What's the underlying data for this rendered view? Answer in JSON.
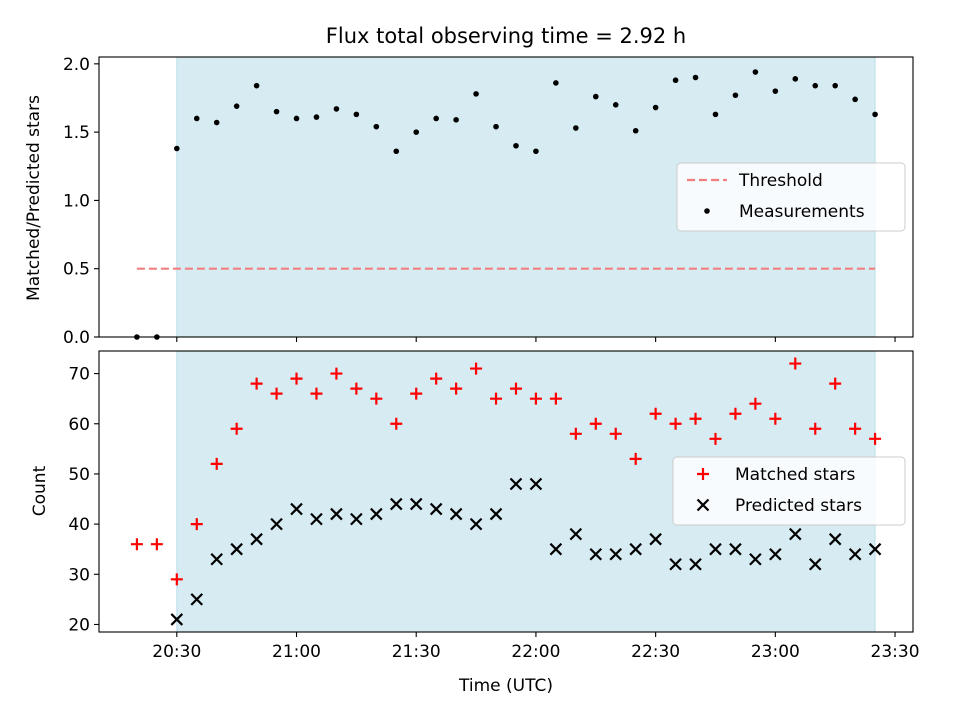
{
  "chart_data": {
    "title": "Flux total observing time = 2.92 h",
    "xlabel": "Time (UTC)",
    "x_ticks": [
      "20:30",
      "21:00",
      "21:30",
      "22:00",
      "22:30",
      "23:00",
      "23:30"
    ],
    "x_tick_minutes": [
      1230,
      1260,
      1290,
      1320,
      1350,
      1380,
      1410
    ],
    "xlim_minutes": [
      1210.5,
      1414.5
    ],
    "observing_window_minutes": [
      1230,
      1405
    ],
    "shade_color": "#add8e6",
    "panels": [
      {
        "type": "scatter",
        "ylabel": "Matched/Predicted stars",
        "ylim": [
          0,
          2.05
        ],
        "y_ticks": [
          "0.0",
          "0.5",
          "1.0",
          "1.5",
          "2.0"
        ],
        "y_tick_values": [
          0,
          0.5,
          1.0,
          1.5,
          2.0
        ],
        "legend_position": "center-right",
        "threshold": {
          "name": "Threshold",
          "y": 0.5,
          "x_range": [
            1220,
            1405
          ],
          "color": "#f08080",
          "style": "dashed"
        },
        "series": [
          {
            "name": "Measurements",
            "marker": "dot",
            "color": "#000000",
            "x": [
              1220,
              1225,
              1230,
              1235,
              1240,
              1245,
              1250,
              1255,
              1260,
              1265,
              1270,
              1275,
              1280,
              1285,
              1290,
              1295,
              1300,
              1305,
              1310,
              1315,
              1320,
              1325,
              1330,
              1335,
              1340,
              1345,
              1350,
              1355,
              1360,
              1365,
              1370,
              1375,
              1380,
              1385,
              1390,
              1395,
              1400,
              1405
            ],
            "y": [
              0.0,
              0.0,
              1.38,
              1.6,
              1.57,
              1.69,
              1.84,
              1.65,
              1.6,
              1.61,
              1.67,
              1.63,
              1.54,
              1.36,
              1.5,
              1.6,
              1.59,
              1.78,
              1.54,
              1.4,
              1.36,
              1.86,
              1.53,
              1.76,
              1.7,
              1.51,
              1.68,
              1.88,
              1.9,
              1.63,
              1.77,
              1.94,
              1.8,
              1.89,
              1.84,
              1.84,
              1.74,
              1.63
            ]
          }
        ]
      },
      {
        "type": "scatter",
        "ylabel": "Count",
        "ylim": [
          18.5,
          74.5
        ],
        "y_ticks": [
          "20",
          "30",
          "40",
          "50",
          "60",
          "70"
        ],
        "y_tick_values": [
          20,
          30,
          40,
          50,
          60,
          70
        ],
        "legend_position": "center-right",
        "series": [
          {
            "name": "Matched stars",
            "marker": "plus",
            "color": "#ff0000",
            "x": [
              1220,
              1225,
              1230,
              1235,
              1240,
              1245,
              1250,
              1255,
              1260,
              1265,
              1270,
              1275,
              1280,
              1285,
              1290,
              1295,
              1300,
              1305,
              1310,
              1315,
              1320,
              1325,
              1330,
              1335,
              1340,
              1345,
              1350,
              1355,
              1360,
              1365,
              1370,
              1375,
              1380,
              1385,
              1390,
              1395,
              1400,
              1405
            ],
            "y": [
              36,
              36,
              29,
              40,
              52,
              59,
              68,
              66,
              69,
              66,
              70,
              67,
              65,
              60,
              66,
              69,
              67,
              71,
              65,
              67,
              65,
              65,
              58,
              60,
              58,
              53,
              62,
              60,
              61,
              57,
              62,
              64,
              61,
              72,
              59,
              68,
              59,
              57
            ]
          },
          {
            "name": "Predicted stars",
            "marker": "x",
            "color": "#000000",
            "x": [
              1230,
              1235,
              1240,
              1245,
              1250,
              1255,
              1260,
              1265,
              1270,
              1275,
              1280,
              1285,
              1290,
              1295,
              1300,
              1305,
              1310,
              1315,
              1320,
              1325,
              1330,
              1335,
              1340,
              1345,
              1350,
              1355,
              1360,
              1365,
              1370,
              1375,
              1380,
              1385,
              1390,
              1395,
              1400,
              1405
            ],
            "y": [
              21,
              25,
              33,
              35,
              37,
              40,
              43,
              41,
              42,
              41,
              42,
              44,
              44,
              43,
              42,
              40,
              42,
              48,
              48,
              35,
              38,
              34,
              34,
              35,
              37,
              32,
              32,
              35,
              35,
              33,
              34,
              38,
              32,
              37,
              34,
              35
            ]
          }
        ]
      }
    ]
  }
}
